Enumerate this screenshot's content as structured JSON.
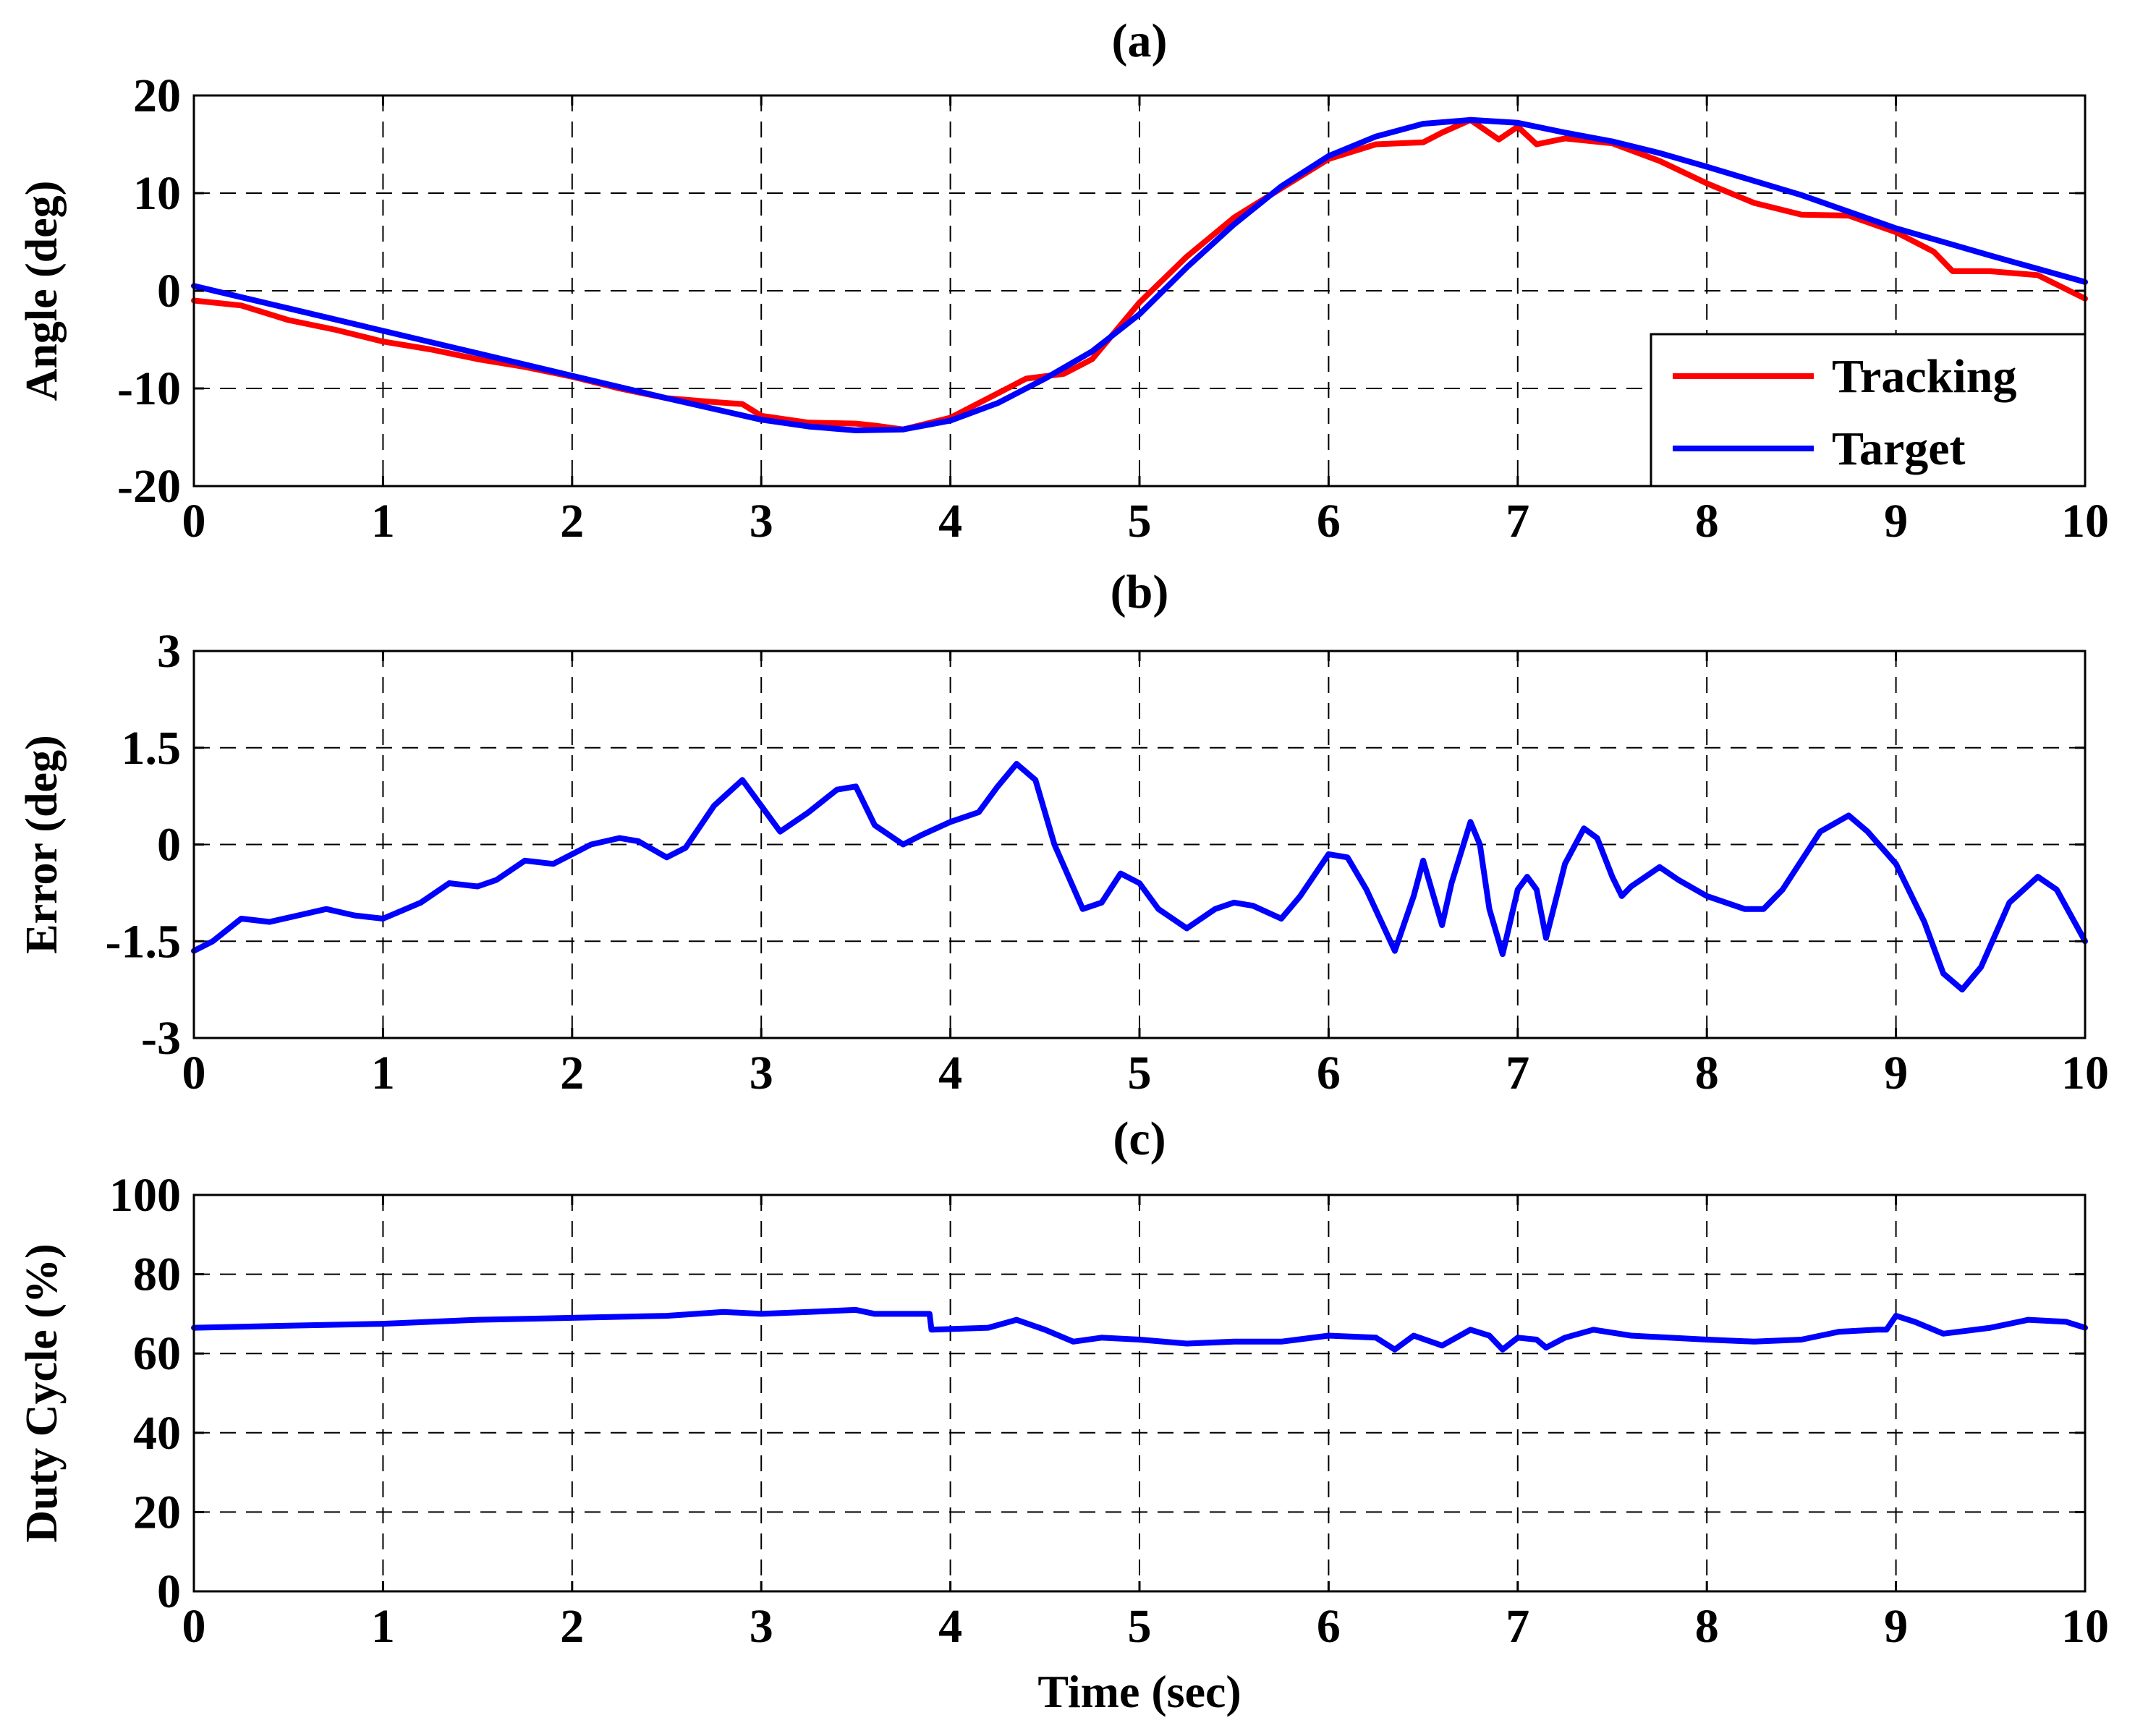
{
  "chart_data": [
    {
      "id": "a",
      "type": "line",
      "title": "(a)",
      "xlabel": "",
      "ylabel": "Angle (deg)",
      "xlim": [
        0,
        10
      ],
      "ylim": [
        -20,
        20
      ],
      "xticks": [
        "0",
        "1",
        "2",
        "3",
        "4",
        "5",
        "6",
        "7",
        "8",
        "9",
        "10"
      ],
      "yticks": [
        "-20",
        "-10",
        "0",
        "10",
        "20"
      ],
      "grid": true,
      "legend_position": "bottom-right",
      "series": [
        {
          "name": "Tracking",
          "color": "#ff0000",
          "x": [
            0,
            0.25,
            0.5,
            0.75,
            1,
            1.25,
            1.5,
            1.75,
            2,
            2.25,
            2.5,
            2.75,
            2.9,
            3,
            3.25,
            3.5,
            3.6,
            3.75,
            4,
            4.25,
            4.4,
            4.6,
            4.75,
            5,
            5.25,
            5.5,
            5.75,
            6,
            6.25,
            6.5,
            6.6,
            6.75,
            6.9,
            7,
            7.1,
            7.25,
            7.5,
            7.75,
            8,
            8.25,
            8.5,
            8.75,
            9,
            9.2,
            9.3,
            9.5,
            9.75,
            10
          ],
          "y": [
            -1,
            -1.5,
            -3,
            -4,
            -5.2,
            -6,
            -7,
            -7.8,
            -8.8,
            -10,
            -11,
            -11.4,
            -11.6,
            -12.8,
            -13.5,
            -13.6,
            -13.8,
            -14.2,
            -13,
            -10.5,
            -9,
            -8.5,
            -7,
            -1.2,
            3.5,
            7.5,
            10.5,
            13.5,
            15,
            15.2,
            16.2,
            17.5,
            15.5,
            16.8,
            15,
            15.6,
            15.1,
            13.3,
            11,
            9,
            7.8,
            7.7,
            6,
            4,
            2,
            2,
            1.6,
            -0.8
          ]
        },
        {
          "name": "Target",
          "color": "#0000ff",
          "x": [
            0,
            0.5,
            1,
            1.5,
            2,
            2.5,
            3,
            3.25,
            3.5,
            3.75,
            4,
            4.25,
            4.5,
            4.75,
            5,
            5.25,
            5.5,
            5.75,
            6,
            6.25,
            6.5,
            6.75,
            7,
            7.25,
            7.5,
            7.75,
            8,
            8.5,
            9,
            9.5,
            10
          ],
          "y": [
            0.5,
            -1.8,
            -4.1,
            -6.4,
            -8.7,
            -11,
            -13.2,
            -13.9,
            -14.3,
            -14.2,
            -13.3,
            -11.5,
            -9,
            -6.2,
            -2.4,
            2.4,
            6.8,
            10.7,
            13.8,
            15.8,
            17.1,
            17.5,
            17.2,
            16.2,
            15.3,
            14.1,
            12.7,
            9.8,
            6.4,
            3.6,
            0.9
          ]
        }
      ]
    },
    {
      "id": "b",
      "type": "line",
      "title": "(b)",
      "xlabel": "",
      "ylabel": "Error (deg)",
      "xlim": [
        0,
        10
      ],
      "ylim": [
        -3,
        3
      ],
      "xticks": [
        "0",
        "1",
        "2",
        "3",
        "4",
        "5",
        "6",
        "7",
        "8",
        "9",
        "10"
      ],
      "yticks": [
        "-3",
        "-1.5",
        "0",
        "1.5",
        "3"
      ],
      "grid": true,
      "series": [
        {
          "name": "Error",
          "color": "#0000ff",
          "x": [
            0,
            0.1,
            0.25,
            0.4,
            0.55,
            0.7,
            0.85,
            1,
            1.2,
            1.35,
            1.5,
            1.6,
            1.75,
            1.9,
            2,
            2.1,
            2.25,
            2.35,
            2.5,
            2.6,
            2.75,
            2.9,
            3,
            3.1,
            3.25,
            3.4,
            3.5,
            3.6,
            3.75,
            3.85,
            4,
            4.15,
            4.25,
            4.35,
            4.45,
            4.55,
            4.7,
            4.8,
            4.9,
            5,
            5.1,
            5.25,
            5.4,
            5.5,
            5.6,
            5.75,
            5.85,
            6,
            6.1,
            6.2,
            6.35,
            6.45,
            6.5,
            6.6,
            6.65,
            6.75,
            6.8,
            6.85,
            6.92,
            7,
            7.05,
            7.1,
            7.15,
            7.25,
            7.35,
            7.42,
            7.5,
            7.55,
            7.6,
            7.75,
            7.85,
            8,
            8.2,
            8.3,
            8.4,
            8.6,
            8.75,
            8.85,
            9,
            9.15,
            9.25,
            9.35,
            9.45,
            9.6,
            9.75,
            9.85,
            10
          ],
          "y": [
            -1.65,
            -1.5,
            -1.15,
            -1.2,
            -1.1,
            -1.0,
            -1.1,
            -1.15,
            -0.9,
            -0.6,
            -0.65,
            -0.55,
            -0.25,
            -0.3,
            -0.15,
            0.0,
            0.1,
            0.05,
            -0.2,
            -0.05,
            0.6,
            1.0,
            0.6,
            0.2,
            0.5,
            0.85,
            0.9,
            0.3,
            0.0,
            0.15,
            0.35,
            0.5,
            0.9,
            1.25,
            1.0,
            0.0,
            -1.0,
            -0.9,
            -0.45,
            -0.6,
            -1.0,
            -1.3,
            -1.0,
            -0.9,
            -0.95,
            -1.15,
            -0.8,
            -0.15,
            -0.2,
            -0.7,
            -1.65,
            -0.8,
            -0.25,
            -1.25,
            -0.6,
            0.35,
            0.0,
            -1.0,
            -1.7,
            -0.7,
            -0.5,
            -0.7,
            -1.45,
            -0.3,
            0.25,
            0.1,
            -0.5,
            -0.8,
            -0.65,
            -0.35,
            -0.55,
            -0.8,
            -1.0,
            -1.0,
            -0.7,
            0.2,
            0.45,
            0.2,
            -0.3,
            -1.2,
            -2.0,
            -2.25,
            -1.9,
            -0.9,
            -0.5,
            -0.7,
            -1.5
          ]
        }
      ]
    },
    {
      "id": "c",
      "type": "line",
      "title": "(c)",
      "xlabel": "Time (sec)",
      "ylabel": "Duty Cycle (%)",
      "xlim": [
        0,
        10
      ],
      "ylim": [
        0,
        100
      ],
      "xticks": [
        "0",
        "1",
        "2",
        "3",
        "4",
        "5",
        "6",
        "7",
        "8",
        "9",
        "10"
      ],
      "yticks": [
        "0",
        "20",
        "40",
        "60",
        "80",
        "100"
      ],
      "grid": true,
      "series": [
        {
          "name": "Duty Cycle",
          "color": "#0000ff",
          "x": [
            0,
            0.5,
            1,
            1.5,
            2,
            2.5,
            2.8,
            3,
            3.25,
            3.5,
            3.6,
            3.89,
            3.9,
            4.2,
            4.35,
            4.5,
            4.65,
            4.8,
            5,
            5.25,
            5.5,
            5.75,
            6,
            6.25,
            6.35,
            6.45,
            6.6,
            6.75,
            6.85,
            6.92,
            7,
            7.1,
            7.15,
            7.25,
            7.4,
            7.6,
            7.8,
            8,
            8.25,
            8.5,
            8.7,
            8.9,
            8.95,
            9,
            9.1,
            9.25,
            9.5,
            9.7,
            9.9,
            10
          ],
          "y": [
            66.5,
            67,
            67.5,
            68.5,
            69,
            69.5,
            70.5,
            70,
            70.5,
            71,
            70,
            70,
            66,
            66.5,
            68.5,
            66,
            63,
            64,
            63.5,
            62.5,
            63,
            63,
            64.5,
            64,
            61,
            64.5,
            62,
            66,
            64.5,
            61,
            64,
            63.5,
            61.5,
            64,
            66,
            64.5,
            64,
            63.5,
            63,
            63.5,
            65.5,
            66,
            66,
            69.5,
            68,
            65,
            66.5,
            68.5,
            68,
            66.5
          ]
        }
      ]
    }
  ]
}
